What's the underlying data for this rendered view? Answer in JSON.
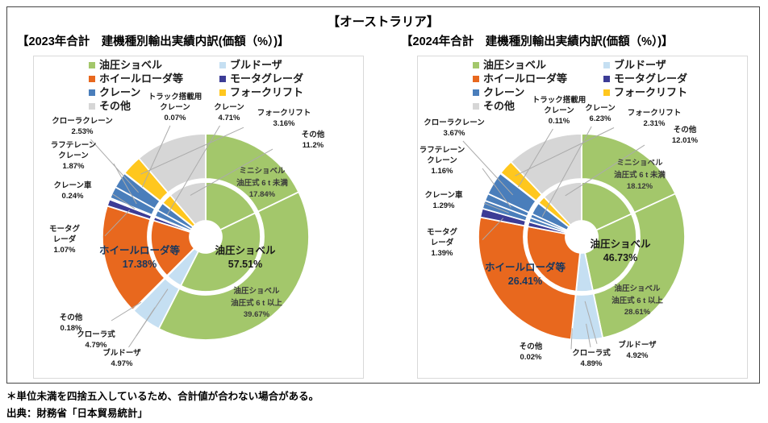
{
  "page": {
    "title": "【オーストラリア】",
    "footnotes": [
      "＊単位未満を四捨五入しているため、合計値が合わない場合がある。",
      "出典：財務省「日本貿易統計」"
    ]
  },
  "palette": {
    "green": "#A3C76B",
    "light_blue": "#C5DFF2",
    "orange": "#E8681E",
    "navy": "#3C3C96",
    "blue": "#4A7EBB",
    "yellow": "#FFC71E",
    "gray": "#D6D6D6",
    "leader_line": "#ABABAB",
    "inner_label_dark": "#1a1a1a",
    "inner_label_blue": "#17375E"
  },
  "legend": {
    "col1": [
      {
        "label": "油圧ショベル",
        "color": "green"
      },
      {
        "label": "ホイールローダ等",
        "color": "orange"
      },
      {
        "label": "クレーン",
        "color": "blue"
      },
      {
        "label": "その他",
        "color": "gray"
      }
    ],
    "col2": [
      {
        "label": "ブルドーザ",
        "color": "light_blue"
      },
      {
        "label": "モータグレーダ",
        "color": "navy"
      },
      {
        "label": "フォークリフト",
        "color": "yellow"
      }
    ]
  },
  "chart_data": [
    {
      "type": "pie",
      "variant": "double-ring-donut",
      "year": "2023",
      "title": "【2023年合計　建機種別輸出実績内訳(価額（%）)】",
      "unit": "%",
      "start_angle_deg": 0,
      "direction": "clockwise",
      "groups": [
        {
          "name": "油圧ショベル",
          "color": "green",
          "value": 57.51,
          "label": "57.51%"
        },
        {
          "name": "ブルドーザ",
          "color": "light_blue",
          "value": 4.97,
          "label": "4.97%"
        },
        {
          "name": "ホイールローダ等",
          "color": "orange",
          "value": 17.38,
          "label": "17.38%"
        },
        {
          "name": "モータグレーダ",
          "color": "navy",
          "value": 1.07,
          "label": "1.07%"
        },
        {
          "name": "クレーン",
          "color": "blue",
          "value": 4.71,
          "label": "4.71%"
        },
        {
          "name": "フォークリフト",
          "color": "yellow",
          "value": 3.16,
          "label": "3.16%"
        },
        {
          "name": "その他",
          "color": "gray",
          "value": 11.2,
          "label": "11.2%"
        }
      ],
      "segments": [
        {
          "id": "mini_shovel",
          "group": 0,
          "lines": [
            "ミニショベル",
            "油圧式 6 t 未満"
          ],
          "value": 17.84,
          "label": "17.84%"
        },
        {
          "id": "large_shovel",
          "group": 0,
          "lines": [
            "油圧ショベル",
            "油圧式 6 t 以上"
          ],
          "value": 39.67,
          "label": "39.67%"
        },
        {
          "id": "crawler_type",
          "group": 1,
          "lines": [
            "クローラ式"
          ],
          "value": 4.79,
          "label": "4.79%"
        },
        {
          "id": "bulldozer_others",
          "group": 1,
          "lines": [
            "その他"
          ],
          "value": 0.18,
          "label": "0.18%"
        },
        {
          "id": "wheel_loader",
          "group": 2,
          "lines": [
            "ホイールローダ等"
          ],
          "value": 17.38,
          "label": "17.38%"
        },
        {
          "id": "motor_grader",
          "group": 3,
          "lines": [
            "モータグ",
            "レーダ"
          ],
          "value": 1.07,
          "label": "1.07%"
        },
        {
          "id": "crane_truck",
          "group": 4,
          "lines": [
            "クレーン車"
          ],
          "value": 0.24,
          "label": "0.24%"
        },
        {
          "id": "rough_terrain_crane",
          "group": 4,
          "lines": [
            "ラフテレーン",
            "クレーン"
          ],
          "value": 1.87,
          "label": "1.87%"
        },
        {
          "id": "crawler_crane",
          "group": 4,
          "lines": [
            "クローラクレーン"
          ],
          "value": 2.53,
          "label": "2.53%"
        },
        {
          "id": "truck_mounted_crane",
          "group": 4,
          "lines": [
            "トラック搭載用",
            "クレーン"
          ],
          "value": 0.07,
          "label": "0.07%"
        },
        {
          "id": "forklift",
          "group": 5,
          "lines": [
            "フォークリフト"
          ],
          "value": 3.16,
          "label": "3.16%"
        },
        {
          "id": "others",
          "group": 6,
          "lines": [
            "その他"
          ],
          "value": 11.2,
          "label": "11.2%"
        }
      ]
    },
    {
      "type": "pie",
      "variant": "double-ring-donut",
      "year": "2024",
      "title": "【2024年合計　建機種別輸出実績内訳(価額（%）)】",
      "unit": "%",
      "start_angle_deg": 0,
      "direction": "clockwise",
      "groups": [
        {
          "name": "油圧ショベル",
          "color": "green",
          "value": 46.73,
          "label": "46.73%"
        },
        {
          "name": "ブルドーザ",
          "color": "light_blue",
          "value": 4.92,
          "label": "4.92%"
        },
        {
          "name": "ホイールローダ等",
          "color": "orange",
          "value": 26.41,
          "label": "26.41%"
        },
        {
          "name": "モータグレーダ",
          "color": "navy",
          "value": 1.39,
          "label": "1.39%"
        },
        {
          "name": "クレーン",
          "color": "blue",
          "value": 6.23,
          "label": "6.23%"
        },
        {
          "name": "フォークリフト",
          "color": "yellow",
          "value": 2.31,
          "label": "2.31%"
        },
        {
          "name": "その他",
          "color": "gray",
          "value": 12.01,
          "label": "12.01%"
        }
      ],
      "segments": [
        {
          "id": "mini_shovel",
          "group": 0,
          "lines": [
            "ミニショベル",
            "油圧式 6 t 未満"
          ],
          "value": 18.12,
          "label": "18.12%"
        },
        {
          "id": "large_shovel",
          "group": 0,
          "lines": [
            "油圧ショベル",
            "油圧式 6 t 以上"
          ],
          "value": 28.61,
          "label": "28.61%"
        },
        {
          "id": "crawler_type",
          "group": 1,
          "lines": [
            "クローラ式"
          ],
          "value": 4.89,
          "label": "4.89%"
        },
        {
          "id": "bulldozer_others",
          "group": 1,
          "lines": [
            "その他"
          ],
          "value": 0.02,
          "label": "0.02%"
        },
        {
          "id": "wheel_loader",
          "group": 2,
          "lines": [
            "ホイールローダ等"
          ],
          "value": 26.41,
          "label": "26.41%"
        },
        {
          "id": "motor_grader",
          "group": 3,
          "lines": [
            "モータグ",
            "レーダ"
          ],
          "value": 1.39,
          "label": "1.39%"
        },
        {
          "id": "crane_truck",
          "group": 4,
          "lines": [
            "クレーン車"
          ],
          "value": 1.29,
          "label": "1.29%"
        },
        {
          "id": "rough_terrain_crane",
          "group": 4,
          "lines": [
            "ラフテレーン",
            "クレーン"
          ],
          "value": 1.16,
          "label": "1.16%"
        },
        {
          "id": "crawler_crane",
          "group": 4,
          "lines": [
            "クローラクレーン"
          ],
          "value": 3.67,
          "label": "3.67%"
        },
        {
          "id": "truck_mounted_crane",
          "group": 4,
          "lines": [
            "トラック搭載用",
            "クレーン"
          ],
          "value": 0.11,
          "label": "0.11%"
        },
        {
          "id": "forklift",
          "group": 5,
          "lines": [
            "フォークリフト"
          ],
          "value": 2.31,
          "label": "2.31%"
        },
        {
          "id": "others",
          "group": 6,
          "lines": [
            "その他"
          ],
          "value": 12.01,
          "label": "12.01%"
        }
      ]
    }
  ]
}
